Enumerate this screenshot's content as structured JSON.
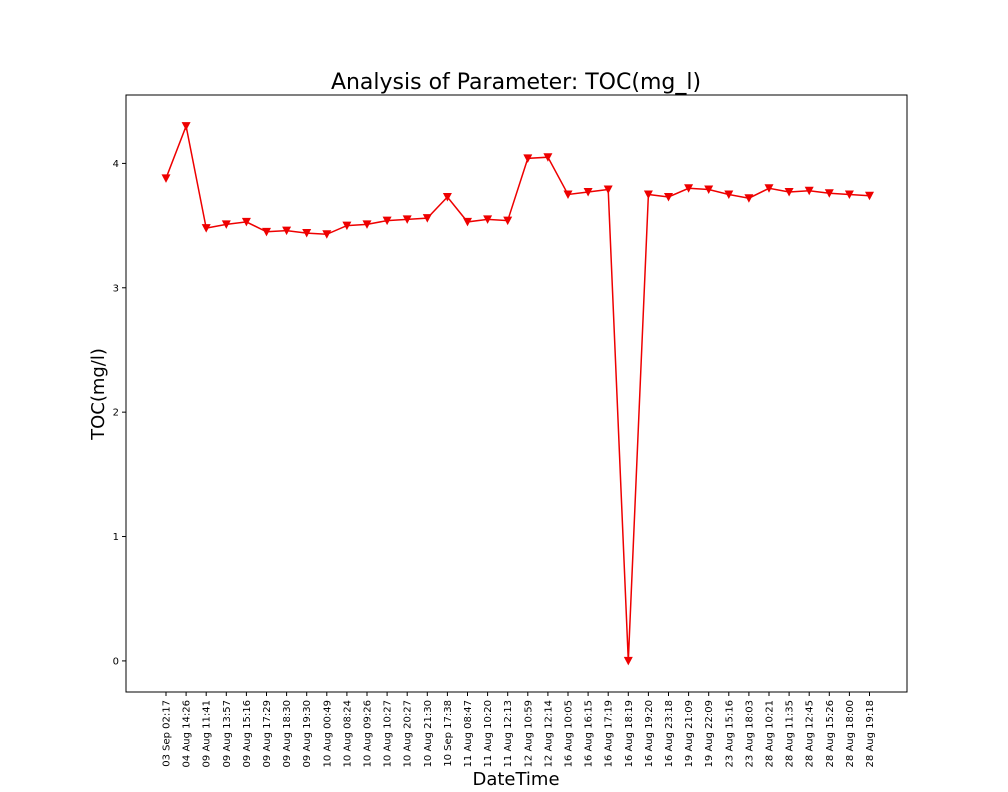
{
  "chart_data": {
    "type": "line",
    "title": "Analysis of Parameter: TOC(mg_l)",
    "xlabel": "DateTime",
    "ylabel": "TOC(mg/l)",
    "ylim": [
      -0.25,
      4.55
    ],
    "yticks": [
      0,
      1,
      2,
      3,
      4
    ],
    "grid": false,
    "legend": "none",
    "marker": "triangle-down",
    "color": "#ee0000",
    "categories": [
      "03 Sep 02:17",
      "04 Aug 14:26",
      "09 Aug 11:41",
      "09 Aug 13:57",
      "09 Aug 15:16",
      "09 Aug 17:29",
      "09 Aug 18:30",
      "09 Aug 19:30",
      "10 Aug 00:49",
      "10 Aug 08:24",
      "10 Aug 09:26",
      "10 Aug 10:27",
      "10 Aug 20:27",
      "10 Aug 21:30",
      "10 Sep 17:38",
      "11 Aug 08:47",
      "11 Aug 10:20",
      "11 Aug 12:13",
      "12 Aug 10:59",
      "12 Aug 12:14",
      "16 Aug 10:05",
      "16 Aug 16:15",
      "16 Aug 17:19",
      "16 Aug 18:19",
      "16 Aug 19:20",
      "16 Aug 23:18",
      "19 Aug 21:09",
      "19 Aug 22:09",
      "23 Aug 15:16",
      "23 Aug 18:03",
      "28 Aug 10:21",
      "28 Aug 11:35",
      "28 Aug 12:45",
      "28 Aug 15:26",
      "28 Aug 18:00",
      "28 Aug 19:18"
    ],
    "series": [
      {
        "values": [
          3.88,
          4.3,
          3.48,
          3.51,
          3.53,
          3.45,
          3.46,
          3.44,
          3.43,
          3.5,
          3.51,
          3.54,
          3.55,
          3.56,
          3.73,
          3.53,
          3.55,
          3.54,
          4.04,
          4.05,
          3.75,
          3.77,
          3.79,
          0.0,
          3.75,
          3.73,
          3.8,
          3.79,
          3.75,
          3.72,
          3.8,
          3.77,
          3.78,
          3.76,
          3.75,
          3.74
        ]
      }
    ]
  }
}
